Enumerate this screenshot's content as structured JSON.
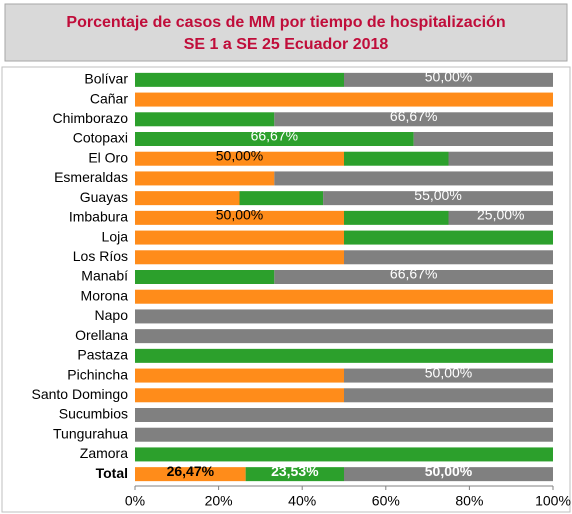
{
  "chart_data": {
    "type": "stacked-barh",
    "title": "Porcentaje de casos de MM por tiempo de hospitalización",
    "subtitle": "SE 1 a SE 25   Ecuador 2018",
    "categories": [
      "Bolívar",
      "Cañar",
      "Chimborazo",
      "Cotopaxi",
      "El Oro",
      "Esmeraldas",
      "Guayas",
      "Imbabura",
      "Loja",
      "Los Ríos",
      "Manabí",
      "Morona",
      "Napo",
      "Orellana",
      "Pastaza",
      "Pichincha",
      "Santo Domingo",
      "Sucumbios",
      "Tungurahua",
      "Zamora",
      "Total"
    ],
    "series": [
      {
        "color": "#ff8c1a",
        "label_color": "#000000",
        "values": [
          0,
          100,
          0,
          0,
          50,
          33.33,
          25,
          50,
          50,
          50,
          0,
          100,
          0,
          0,
          0,
          50,
          50,
          0,
          0,
          0,
          26.47
        ],
        "value_labels": [
          null,
          null,
          null,
          null,
          "50,00%",
          null,
          null,
          "50,00%",
          null,
          null,
          null,
          null,
          null,
          null,
          null,
          null,
          null,
          null,
          null,
          null,
          "26,47%"
        ]
      },
      {
        "color": "#2ca02c",
        "label_color": "#ffffff",
        "values": [
          50,
          0,
          33.33,
          66.67,
          25,
          0,
          20,
          25,
          50,
          0,
          33.33,
          0,
          0,
          0,
          100,
          0,
          0,
          0,
          0,
          100,
          23.53
        ],
        "value_labels": [
          null,
          null,
          null,
          "66,67%",
          null,
          null,
          null,
          null,
          null,
          null,
          null,
          null,
          null,
          null,
          null,
          null,
          null,
          null,
          null,
          null,
          "23,53%"
        ]
      },
      {
        "color": "#808080",
        "label_color": "#ffffff",
        "values": [
          50,
          0,
          66.67,
          33.33,
          25,
          66.67,
          55,
          25,
          0,
          50,
          66.67,
          0,
          100,
          100,
          0,
          50,
          50,
          100,
          100,
          0,
          50
        ],
        "value_labels": [
          "50,00%",
          null,
          "66,67%",
          null,
          null,
          null,
          "55,00%",
          "25,00%",
          null,
          null,
          "66,67%",
          null,
          null,
          null,
          null,
          "50,00%",
          null,
          null,
          null,
          null,
          "50,00%"
        ]
      }
    ],
    "xlim": [
      0,
      100
    ],
    "xticks": [
      {
        "value": 0,
        "label": "0%"
      },
      {
        "value": 20,
        "label": "20%"
      },
      {
        "value": 40,
        "label": "40%"
      },
      {
        "value": 60,
        "label": "60%"
      },
      {
        "value": 80,
        "label": "80%"
      },
      {
        "value": 100,
        "label": "100%"
      }
    ]
  }
}
